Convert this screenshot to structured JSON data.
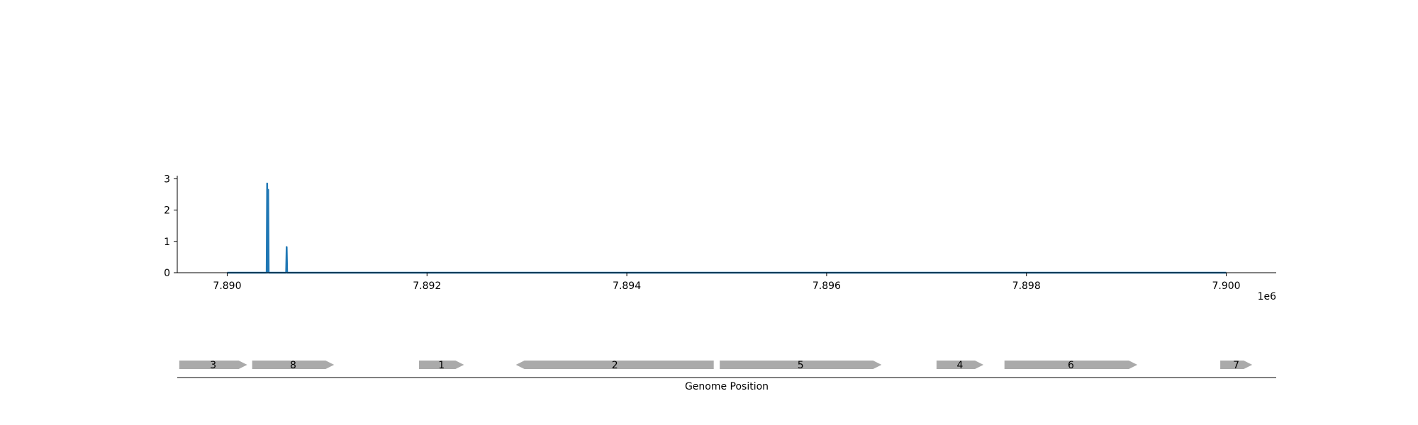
{
  "chart_data": [
    {
      "type": "line",
      "title": "",
      "xlabel": "",
      "ylabel": "",
      "x_offset_text": "1e6",
      "xlim": [
        7889500,
        7900500
      ],
      "ylim": [
        0,
        3.1
      ],
      "x_ticks": [
        7890000,
        7892000,
        7894000,
        7896000,
        7898000,
        7900000
      ],
      "x_tick_labels": [
        "7.890",
        "7.892",
        "7.894",
        "7.896",
        "7.898",
        "7.900"
      ],
      "y_ticks": [
        0,
        1,
        2,
        3
      ],
      "y_tick_labels": [
        "0",
        "1",
        "2",
        "3"
      ],
      "grid": false,
      "color": "#1f77b4",
      "series": [
        {
          "x": [
            7890000,
            7890395,
            7890400,
            7890405,
            7890410,
            7890415,
            7890590,
            7890595,
            7890600,
            7900000
          ],
          "values": [
            0,
            0,
            2.85,
            0,
            2.65,
            0,
            0,
            0.82,
            0,
            0
          ]
        }
      ]
    },
    {
      "type": "gene_track",
      "xlabel": "Genome Position",
      "color": "#aaaaaa",
      "genes": [
        {
          "label": "3",
          "start": 7889520,
          "end": 7890200,
          "strand": "+"
        },
        {
          "label": "8",
          "start": 7890250,
          "end": 7891070,
          "strand": "+"
        },
        {
          "label": "1",
          "start": 7891920,
          "end": 7892370,
          "strand": "+"
        },
        {
          "label": "2",
          "start": 7892890,
          "end": 7894870,
          "strand": "-"
        },
        {
          "label": "5",
          "start": 7894930,
          "end": 7896550,
          "strand": "+"
        },
        {
          "label": "4",
          "start": 7897100,
          "end": 7897570,
          "strand": "+"
        },
        {
          "label": "6",
          "start": 7897780,
          "end": 7899110,
          "strand": "+"
        },
        {
          "label": "7",
          "start": 7899940,
          "end": 7900260,
          "strand": "+"
        }
      ]
    }
  ]
}
